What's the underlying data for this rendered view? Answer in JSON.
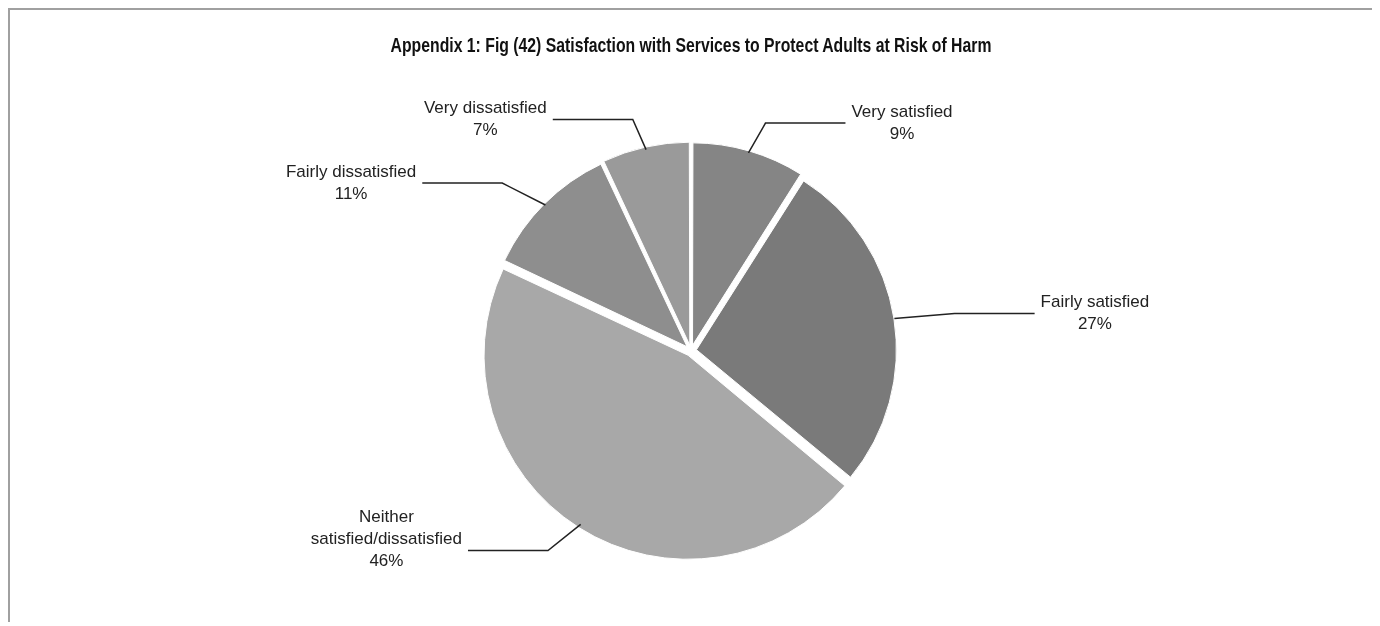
{
  "chart_data": {
    "type": "pie",
    "title": "Appendix 1: Fig (42) Satisfaction with Services to Protect Adults at Risk of Harm",
    "categories": [
      "Very satisfied",
      "Fairly satisfied",
      "Neither satisfied/dissatisfied",
      "Fairly dissatisfied",
      "Very dissatisfied"
    ],
    "values": [
      9,
      27,
      46,
      11,
      7
    ],
    "colors": [
      "#858585",
      "#7a7a7a",
      "#a8a8a8",
      "#8e8e8e",
      "#9a9a9a"
    ],
    "value_labels": [
      "9%",
      "27%",
      "46%",
      "11%",
      "7%"
    ],
    "legend": false
  }
}
